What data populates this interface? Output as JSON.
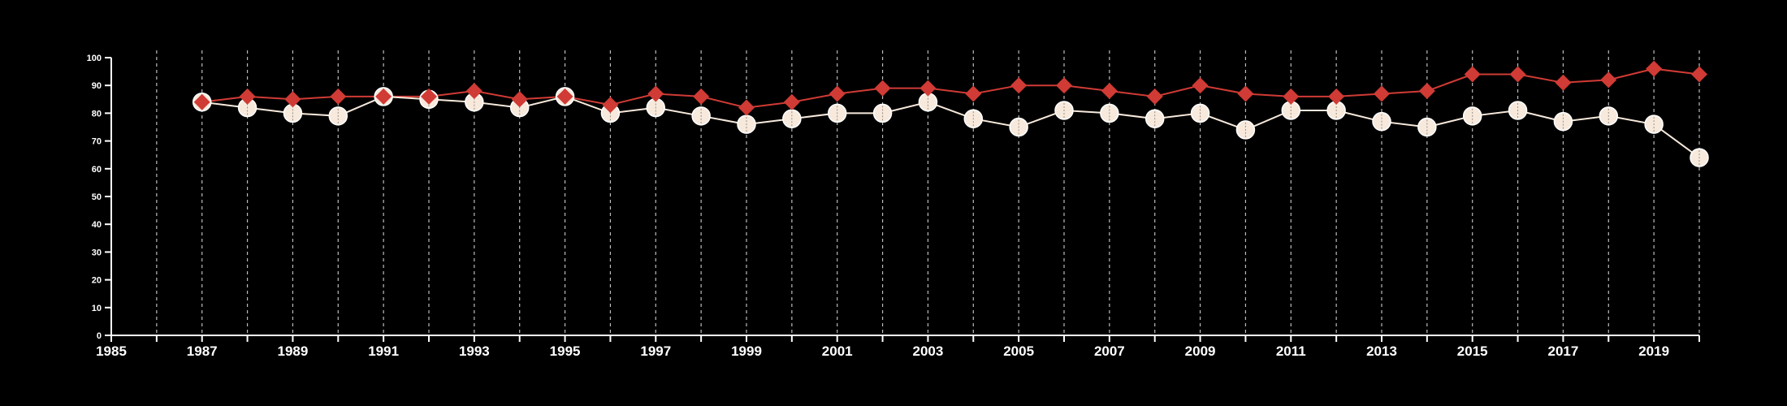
{
  "chart_data": {
    "type": "line",
    "title": "",
    "xlabel": "",
    "ylabel": "",
    "xlim": [
      1985,
      2020
    ],
    "ylim": [
      0,
      100
    ],
    "yticks": [
      0,
      10,
      20,
      30,
      40,
      50,
      60,
      70,
      80,
      90,
      100
    ],
    "xticks": [
      1985,
      1987,
      1989,
      1991,
      1993,
      1995,
      1997,
      1999,
      2001,
      2003,
      2005,
      2007,
      2009,
      2011,
      2013,
      2015,
      2017,
      2019
    ],
    "x": [
      1987,
      1988,
      1989,
      1990,
      1991,
      1992,
      1993,
      1994,
      1995,
      1996,
      1997,
      1998,
      1999,
      2000,
      2001,
      2002,
      2003,
      2004,
      2005,
      2006,
      2007,
      2008,
      2009,
      2010,
      2011,
      2012,
      2013,
      2014,
      2015,
      2016,
      2017,
      2018,
      2019,
      2020
    ],
    "series": [
      {
        "color": "#d03b35",
        "marker": "diamond",
        "values": [
          84,
          86,
          85,
          86,
          86,
          86,
          88,
          85,
          86,
          83,
          87,
          86,
          82,
          84,
          87,
          89,
          89,
          87,
          90,
          90,
          88,
          86,
          90,
          87,
          86,
          86,
          87,
          88,
          94,
          94,
          91,
          92,
          96,
          94
        ]
      },
      {
        "color": "#f7e9dc",
        "marker": "circle",
        "values": [
          84,
          82,
          80,
          79,
          86,
          85,
          84,
          82,
          86,
          80,
          82,
          79,
          76,
          78,
          80,
          80,
          84,
          78,
          75,
          81,
          80,
          78,
          80,
          74,
          81,
          81,
          77,
          75,
          79,
          81,
          77,
          79,
          76,
          64
        ]
      }
    ],
    "grid": "vertical-dashed",
    "background": "#000000",
    "axis_color": "#ffffff"
  }
}
